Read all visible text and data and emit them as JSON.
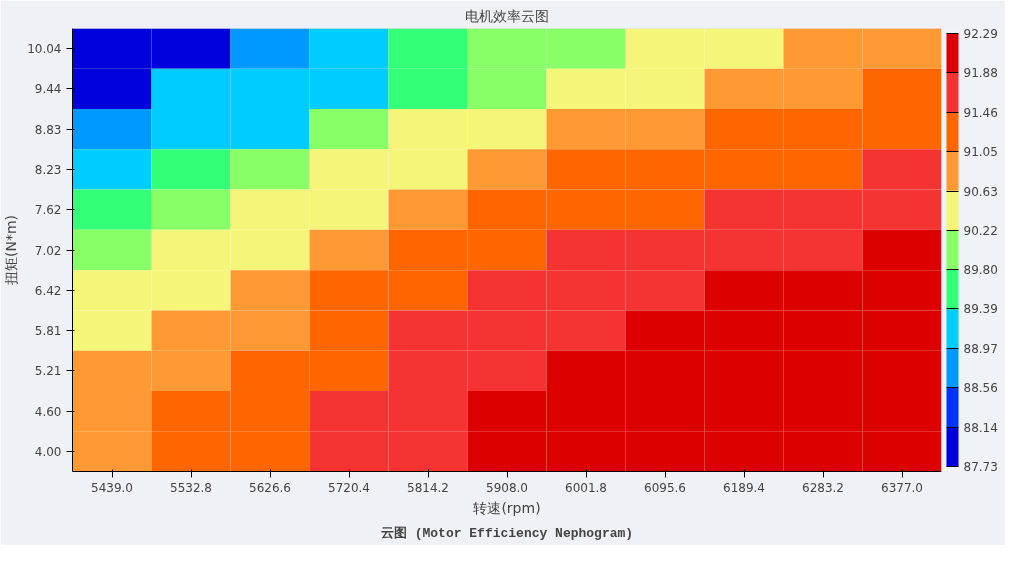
{
  "chart_data": {
    "type": "heatmap",
    "title": "电机效率云图",
    "xlabel": "转速(rpm)",
    "ylabel": "扭矩(N*m)",
    "annotations": [
      "云图 (Motor Efficiency Nephogram)"
    ],
    "categories": [
      "5439.0",
      "5532.8",
      "5626.6",
      "5720.4",
      "5814.2",
      "5908.0",
      "6001.8",
      "6095.6",
      "6189.4",
      "6283.2",
      "6377.0"
    ],
    "y_categories": [
      "10.04",
      "9.44",
      "8.83",
      "8.23",
      "7.62",
      "7.02",
      "6.42",
      "5.81",
      "5.21",
      "4.60",
      "4.00"
    ],
    "cells": [
      [
        87.9,
        87.9,
        88.8,
        89.2,
        89.6,
        90.0,
        90.0,
        90.4,
        90.4,
        90.8,
        90.8
      ],
      [
        87.9,
        89.2,
        89.2,
        89.2,
        89.6,
        90.0,
        90.4,
        90.4,
        90.8,
        90.8,
        91.3
      ],
      [
        88.8,
        89.2,
        89.2,
        90.0,
        90.4,
        90.4,
        90.8,
        90.8,
        91.3,
        91.3,
        91.3
      ],
      [
        89.2,
        89.6,
        90.0,
        90.4,
        90.4,
        90.8,
        91.3,
        91.3,
        91.3,
        91.3,
        91.7
      ],
      [
        89.6,
        90.0,
        90.4,
        90.4,
        90.8,
        91.3,
        91.3,
        91.3,
        91.7,
        91.7,
        91.7
      ],
      [
        90.0,
        90.4,
        90.4,
        90.8,
        91.3,
        91.3,
        91.7,
        91.7,
        91.7,
        91.7,
        92.1
      ],
      [
        90.4,
        90.4,
        90.8,
        91.3,
        91.3,
        91.7,
        91.7,
        91.7,
        92.1,
        92.1,
        92.1
      ],
      [
        90.4,
        90.8,
        90.8,
        91.3,
        91.7,
        91.7,
        91.7,
        92.1,
        92.1,
        92.1,
        92.1
      ],
      [
        90.8,
        90.8,
        91.3,
        91.3,
        91.7,
        91.7,
        92.1,
        92.1,
        92.1,
        92.1,
        92.1
      ],
      [
        90.8,
        91.3,
        91.3,
        91.7,
        91.7,
        92.1,
        92.1,
        92.1,
        92.1,
        92.1,
        92.1
      ],
      [
        90.8,
        91.3,
        91.3,
        91.7,
        91.7,
        92.1,
        92.1,
        92.1,
        92.1,
        92.1,
        92.1
      ]
    ],
    "clim": [
      87.73,
      92.29
    ],
    "cticks": [
      87.73,
      88.14,
      88.56,
      88.97,
      89.39,
      {
        "value": 89.8,
        "label": "89.80"
      },
      90.22,
      90.63,
      91.05,
      91.46,
      91.88,
      92.29
    ]
  }
}
